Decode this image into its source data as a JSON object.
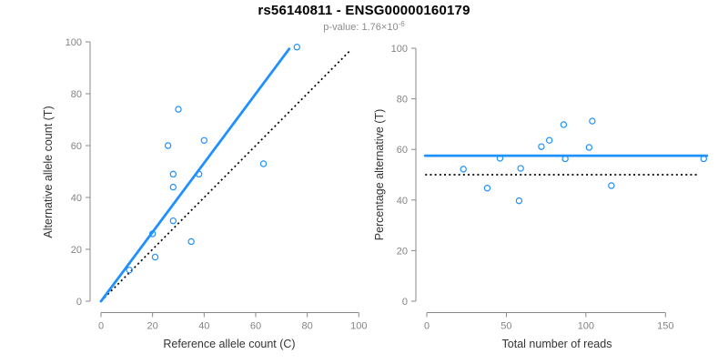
{
  "header": {
    "title": "rs56140811 - ENSG00000160179",
    "p_label": "p-value: 1.76×10",
    "p_exponent": "-6"
  },
  "colors": {
    "accent_blue": "#1E90FF",
    "identity_black": "#000000",
    "axis_line": "#888888",
    "tick_text": "#848484",
    "axis_label_text": "#333333",
    "subtitle_gray": "#8c8c8c"
  },
  "chart_data": [
    {
      "type": "scatter",
      "name": "allele-counts-plot",
      "xlabel": "Reference allele count (C)",
      "ylabel": "Alternative allele count (T)",
      "xlim": [
        0,
        100
      ],
      "ylim": [
        0,
        100
      ],
      "xticks": [
        0,
        20,
        40,
        60,
        80,
        100
      ],
      "yticks": [
        0,
        20,
        40,
        60,
        80,
        100
      ],
      "grid": false,
      "points": [
        [
          11,
          12
        ],
        [
          21,
          17
        ],
        [
          20,
          26
        ],
        [
          28,
          31
        ],
        [
          35,
          23
        ],
        [
          28,
          44
        ],
        [
          28,
          49
        ],
        [
          26,
          60
        ],
        [
          38,
          49
        ],
        [
          30,
          74
        ],
        [
          40,
          62
        ],
        [
          63,
          53
        ],
        [
          76,
          98
        ]
      ],
      "fit_line": {
        "x": [
          0,
          73
        ],
        "y": [
          0,
          97.3
        ],
        "style": "solid"
      },
      "identity_line": {
        "x": [
          0,
          97
        ],
        "y": [
          0,
          97
        ],
        "style": "dotted"
      }
    },
    {
      "type": "scatter",
      "name": "percentage-plot",
      "xlabel": "Total number of reads",
      "ylabel": "Percentage alternative (T)",
      "xlim": [
        0,
        178
      ],
      "ylim": [
        0,
        100
      ],
      "xticks": [
        0,
        50,
        100,
        150
      ],
      "yticks": [
        0,
        20,
        40,
        60,
        80,
        100
      ],
      "grid": false,
      "points": [
        [
          23,
          52.2
        ],
        [
          38,
          44.7
        ],
        [
          46,
          56.5
        ],
        [
          59,
          52.5
        ],
        [
          58,
          39.7
        ],
        [
          72,
          61.1
        ],
        [
          77,
          63.6
        ],
        [
          86,
          69.8
        ],
        [
          87,
          56.3
        ],
        [
          102,
          60.8
        ],
        [
          104,
          71.2
        ],
        [
          116,
          45.7
        ],
        [
          174,
          56.3
        ]
      ],
      "mean_line": {
        "y": 57.5,
        "x": [
          -1,
          176
        ],
        "style": "solid"
      },
      "null_line": {
        "y": 50,
        "x": [
          -1,
          171
        ],
        "style": "dotted"
      }
    }
  ]
}
